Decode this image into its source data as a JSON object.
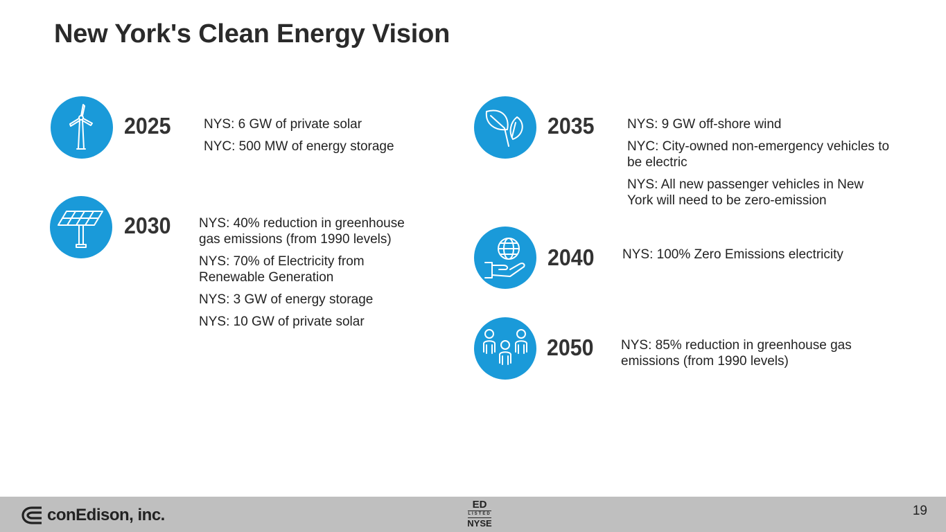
{
  "title": "New York's Clean Energy Vision",
  "milestones": [
    {
      "year": "2025",
      "icon": "wind-turbine-icon",
      "items": [
        "NYS: 6 GW of private solar",
        "NYC: 500 MW of energy storage"
      ]
    },
    {
      "year": "2030",
      "icon": "solar-panel-icon",
      "items": [
        "NYS: 40% reduction in greenhouse gas emissions (from 1990 levels)",
        "NYS: 70% of Electricity from Renewable Generation",
        "NYS: 3 GW of energy storage",
        "NYS: 10 GW of private solar"
      ]
    },
    {
      "year": "2035",
      "icon": "leaf-icon",
      "items": [
        "NYS: 9 GW off-shore wind",
        "NYC: City-owned non-emergency vehicles to be electric",
        "NYS: All new passenger vehicles in New York will need to be zero-emission"
      ]
    },
    {
      "year": "2040",
      "icon": "globe-in-hand-icon",
      "items": [
        "NYS: 100% Zero Emissions electricity"
      ]
    },
    {
      "year": "2050",
      "icon": "people-icon",
      "items": [
        "NYS: 85% reduction in greenhouse gas emissions (from 1990 levels)"
      ]
    }
  ],
  "footer": {
    "company": "conEdison, inc.",
    "ticker": "ED",
    "listed": "LISTED",
    "exchange": "NYSE",
    "page_number": "19"
  },
  "colors": {
    "icon_blue": "#1a9ad9",
    "footer_gray": "#bfbfbf"
  }
}
